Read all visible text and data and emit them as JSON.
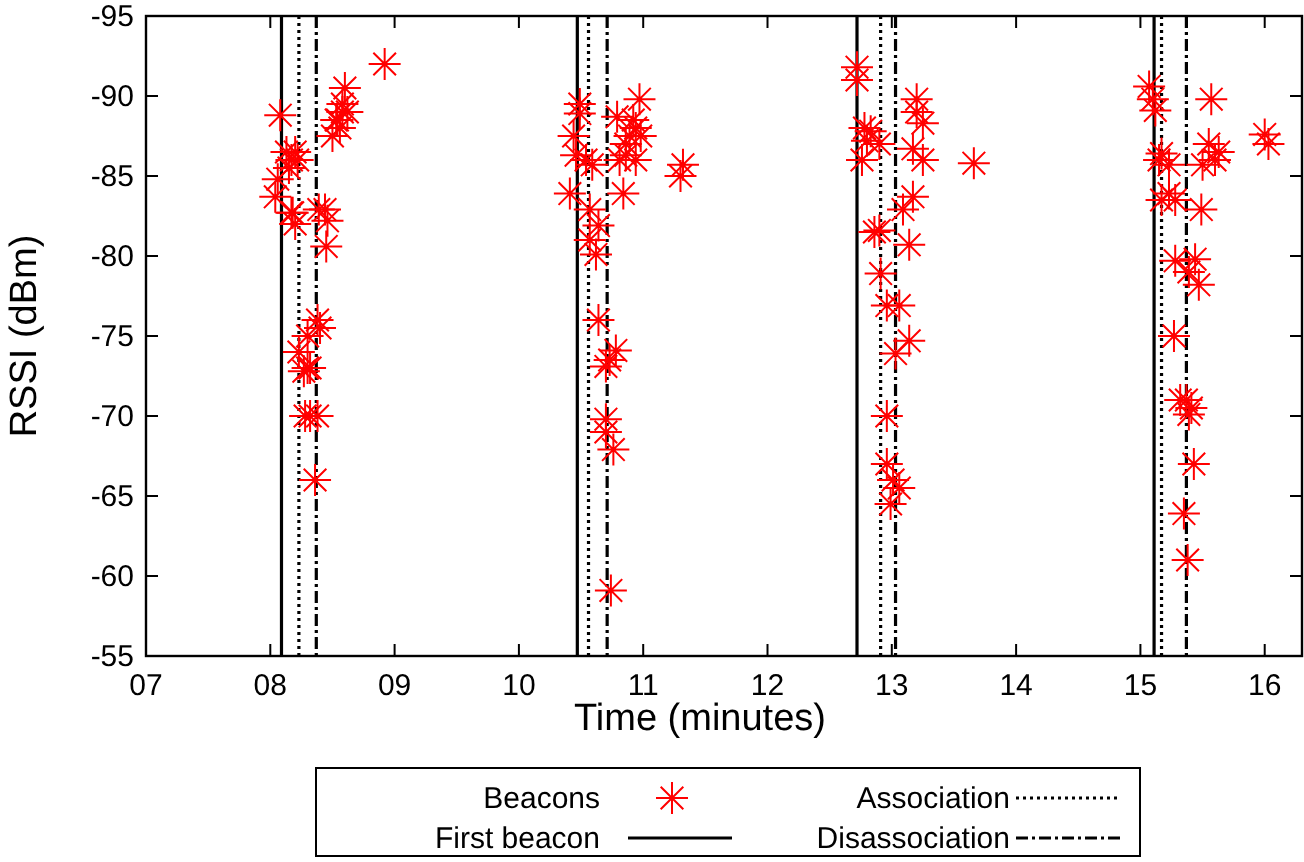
{
  "chart_data": {
    "type": "scatter",
    "xlabel": "Time (minutes)",
    "ylabel": "RSSI (dBm)",
    "xlim": [
      7,
      16.3
    ],
    "ylim": [
      -55,
      -95
    ],
    "xticks": [
      {
        "value": 7,
        "label": "07"
      },
      {
        "value": 8,
        "label": "08"
      },
      {
        "value": 9,
        "label": "09"
      },
      10,
      11,
      12,
      13,
      14,
      15,
      16
    ],
    "yticks": [
      -95,
      -90,
      -85,
      -80,
      -75,
      -70,
      -65,
      -60,
      -55
    ],
    "grid": false,
    "legend": "bottom",
    "marker": "cross",
    "series": [
      {
        "name": "Beacons",
        "color": "#ff0000",
        "x": [
          8.08,
          8.13,
          8.17,
          8.2,
          8.15,
          8.22,
          8.06,
          8.04,
          8.18,
          8.2,
          8.17,
          8.39,
          8.44,
          8.46,
          8.45,
          8.92,
          8.6,
          8.58,
          8.54,
          8.56,
          8.5,
          8.62,
          8.53,
          8.58,
          8.38,
          8.3,
          8.23,
          8.4,
          8.3,
          8.27,
          8.32,
          8.32,
          8.28,
          8.38,
          8.36,
          10.49,
          10.49,
          10.79,
          10.97,
          10.92,
          10.89,
          10.94,
          10.86,
          10.98,
          10.44,
          10.46,
          10.54,
          10.59,
          10.86,
          10.94,
          10.81,
          11.32,
          11.3,
          10.41,
          10.84,
          10.57,
          10.64,
          10.57,
          10.62,
          10.64,
          10.78,
          10.73,
          10.7,
          10.7,
          10.7,
          10.76,
          10.74,
          12.72,
          12.72,
          13.2,
          13.2,
          13.25,
          12.78,
          12.8,
          12.83,
          12.9,
          12.76,
          13.25,
          13.17,
          13.66,
          13.17,
          13.09,
          12.9,
          13.14,
          12.86,
          12.91,
          12.96,
          13.06,
          13.14,
          13.03,
          12.96,
          12.96,
          13.01,
          13.06,
          12.99,
          15.07,
          15.1,
          15.12,
          15.57,
          16.0,
          16.03,
          15.17,
          15.15,
          15.23,
          15.55,
          15.63,
          15.5,
          15.6,
          15.23,
          15.28,
          15.17,
          15.49,
          15.28,
          15.44,
          15.39,
          15.47,
          15.27,
          15.37,
          15.41,
          15.32,
          15.39,
          15.43,
          15.35,
          15.38
        ],
        "values": [
          -88.8,
          -86.5,
          -86,
          -86.5,
          -85.5,
          -86,
          -84.8,
          -83.7,
          -82.7,
          -82,
          -82.7,
          -82.9,
          -82.9,
          -82.2,
          -80.6,
          -92,
          -90.5,
          -89.5,
          -88.5,
          -88,
          -87.5,
          -89,
          -88.5,
          -89,
          -76,
          -75,
          -74,
          -75.5,
          -73,
          -72.8,
          -73,
          -70,
          -70,
          -70,
          -66,
          -89.5,
          -88.9,
          -88.7,
          -89.8,
          -88.5,
          -87.5,
          -88,
          -87,
          -87.5,
          -87.5,
          -86.3,
          -86,
          -85.7,
          -86.3,
          -86,
          -86,
          -85.7,
          -85,
          -83.9,
          -83.9,
          -82.9,
          -81.9,
          -81,
          -80.1,
          -76,
          -74.1,
          -73.5,
          -73.1,
          -69.8,
          -69,
          -67.9,
          -59.1,
          -91.8,
          -91,
          -89.8,
          -89,
          -88.3,
          -88,
          -87.2,
          -87.8,
          -87,
          -86,
          -86,
          -86.7,
          -85.8,
          -83.7,
          -82.9,
          -81.6,
          -80.7,
          -81.5,
          -78.9,
          -76.9,
          -76.9,
          -74.7,
          -73.9,
          -70,
          -67,
          -66,
          -65.5,
          -64.5,
          -90.6,
          -89.8,
          -89.1,
          -89.8,
          -87.6,
          -87,
          -86.4,
          -86,
          -85.7,
          -87,
          -86.5,
          -85.7,
          -86,
          -83.9,
          -83.5,
          -83.5,
          -82.9,
          -79.7,
          -79.8,
          -79,
          -78.2,
          -75,
          -71,
          -70.5,
          -71,
          -70.1,
          -67,
          -63.9,
          -61
        ]
      }
    ],
    "ref_lines": [
      {
        "axis": "x",
        "value": 8.09,
        "label": "First beacon",
        "line_style": "solid",
        "color": "#000000"
      },
      {
        "axis": "x",
        "value": 8.23,
        "label": "Association",
        "line_style": "dotted",
        "color": "#000000"
      },
      {
        "axis": "x",
        "value": 8.37,
        "label": "Disassociation",
        "line_style": "dashdot",
        "color": "#000000"
      },
      {
        "axis": "x",
        "value": 10.47,
        "line_style": "solid",
        "color": "#000000"
      },
      {
        "axis": "x",
        "value": 10.56,
        "line_style": "dotted",
        "color": "#000000"
      },
      {
        "axis": "x",
        "value": 10.71,
        "line_style": "dashdot",
        "color": "#000000"
      },
      {
        "axis": "x",
        "value": 12.72,
        "line_style": "solid",
        "color": "#000000"
      },
      {
        "axis": "x",
        "value": 12.91,
        "line_style": "dotted",
        "color": "#000000"
      },
      {
        "axis": "x",
        "value": 13.03,
        "line_style": "dashdot",
        "color": "#000000"
      },
      {
        "axis": "x",
        "value": 15.11,
        "line_style": "solid",
        "color": "#000000"
      },
      {
        "axis": "x",
        "value": 15.17,
        "line_style": "dotted",
        "color": "#000000"
      },
      {
        "axis": "x",
        "value": 15.37,
        "line_style": "dashdot",
        "color": "#000000"
      }
    ]
  }
}
